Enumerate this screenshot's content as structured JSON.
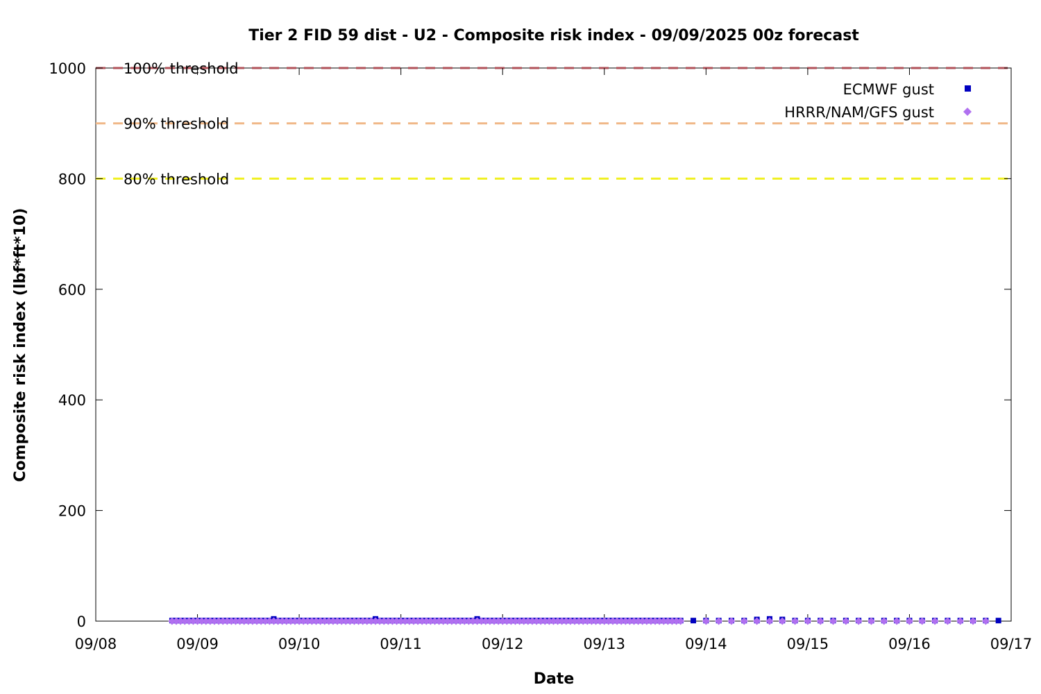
{
  "chart_data": {
    "type": "scatter",
    "title": "Tier 2 FID 59 dist - U2 - Composite risk index - 09/09/2025 00z forecast",
    "xlabel": "Date",
    "ylabel": "Composite risk index (lbf*ft*10)",
    "x_ticks": [
      "09/08",
      "09/09",
      "09/10",
      "09/11",
      "09/12",
      "09/13",
      "09/14",
      "09/15",
      "09/16",
      "09/17"
    ],
    "x_range_days": [
      0,
      9
    ],
    "y_ticks": [
      "0",
      "200",
      "400",
      "600",
      "800",
      "1000"
    ],
    "ylim": [
      0,
      1000
    ],
    "legend_position": "top-right",
    "thresholds": [
      {
        "label": "100% threshold",
        "value": 1000,
        "color": "#b05058"
      },
      {
        "label": "90% threshold",
        "value": 900,
        "color": "#f0b888"
      },
      {
        "label": "80% threshold",
        "value": 800,
        "color": "#f0f020"
      }
    ],
    "series": [
      {
        "name": "ECMWF gust",
        "color": "#0000c0",
        "marker": "square",
        "points": [
          {
            "start_day": 0.75,
            "end_day": 5.75,
            "step_hours": 1,
            "value": 1
          },
          {
            "start_day": 5.875,
            "end_day": 8.875,
            "step_hours": 3,
            "value": 1
          }
        ],
        "bumps": [
          {
            "day": 1.75,
            "value": 4
          },
          {
            "day": 2.75,
            "value": 4
          },
          {
            "day": 3.75,
            "value": 4
          },
          {
            "day": 6.5,
            "value": 3
          },
          {
            "day": 6.625,
            "value": 4
          },
          {
            "day": 6.75,
            "value": 3
          }
        ]
      },
      {
        "name": "HRRR/NAM/GFS gust",
        "color": "#b070f0",
        "marker": "diamond",
        "points": [
          {
            "start_day": 0.75,
            "end_day": 5.75,
            "step_hours": 1,
            "value": 0
          },
          {
            "start_day": 6.0,
            "end_day": 8.75,
            "step_hours": 3,
            "value": 0
          }
        ]
      }
    ]
  }
}
